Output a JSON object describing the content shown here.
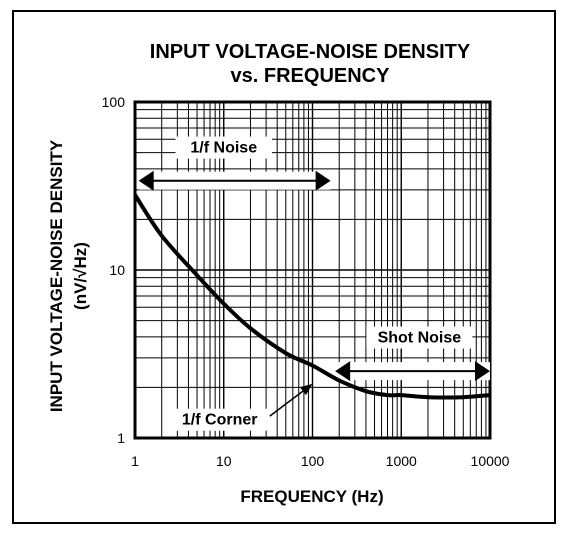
{
  "chart_data": {
    "type": "line",
    "title_line1": "INPUT VOLTAGE-NOISE DENSITY",
    "title_line2": "vs. FREQUENCY",
    "xlabel": "FREQUENCY (Hz)",
    "ylabel_line1": "INPUT VOLTAGE-NOISE DENSITY",
    "ylabel_line2": "(nV/√Hz)",
    "xscale": "log",
    "yscale": "log",
    "xlim": [
      1,
      10000
    ],
    "ylim": [
      1,
      100
    ],
    "grid": true,
    "x_ticks": [
      1,
      10,
      100,
      1000,
      10000
    ],
    "x_tick_labels": [
      "1",
      "10",
      "100",
      "1000",
      "10000"
    ],
    "y_ticks": [
      1,
      10,
      100
    ],
    "y_tick_labels": [
      "1",
      "10",
      "100"
    ],
    "series": [
      {
        "x": [
          1,
          2,
          5,
          10,
          20,
          50,
          100,
          200,
          400,
          700,
          1000,
          2000,
          5000,
          10000
        ],
        "y": [
          28,
          16,
          9.3,
          6.3,
          4.5,
          3.2,
          2.7,
          2.2,
          1.9,
          1.8,
          1.8,
          1.75,
          1.75,
          1.8
        ]
      }
    ],
    "annotations": {
      "one_over_f_noise": {
        "text": "1/f Noise",
        "arrow_x_range": [
          1.1,
          160
        ],
        "arrow_y": 34,
        "text_x": 10,
        "text_y": 50
      },
      "shot_noise": {
        "text": "Shot Noise",
        "arrow_x_range": [
          180,
          10000
        ],
        "arrow_y": 2.5,
        "text_x": 1600,
        "text_y": 3.7
      },
      "one_over_f_corner": {
        "text": "1/f Corner",
        "text_x": 9,
        "text_y": 1.2,
        "pointer_from": [
          33,
          1.35
        ],
        "pointer_to": [
          100,
          2.1
        ]
      }
    }
  }
}
